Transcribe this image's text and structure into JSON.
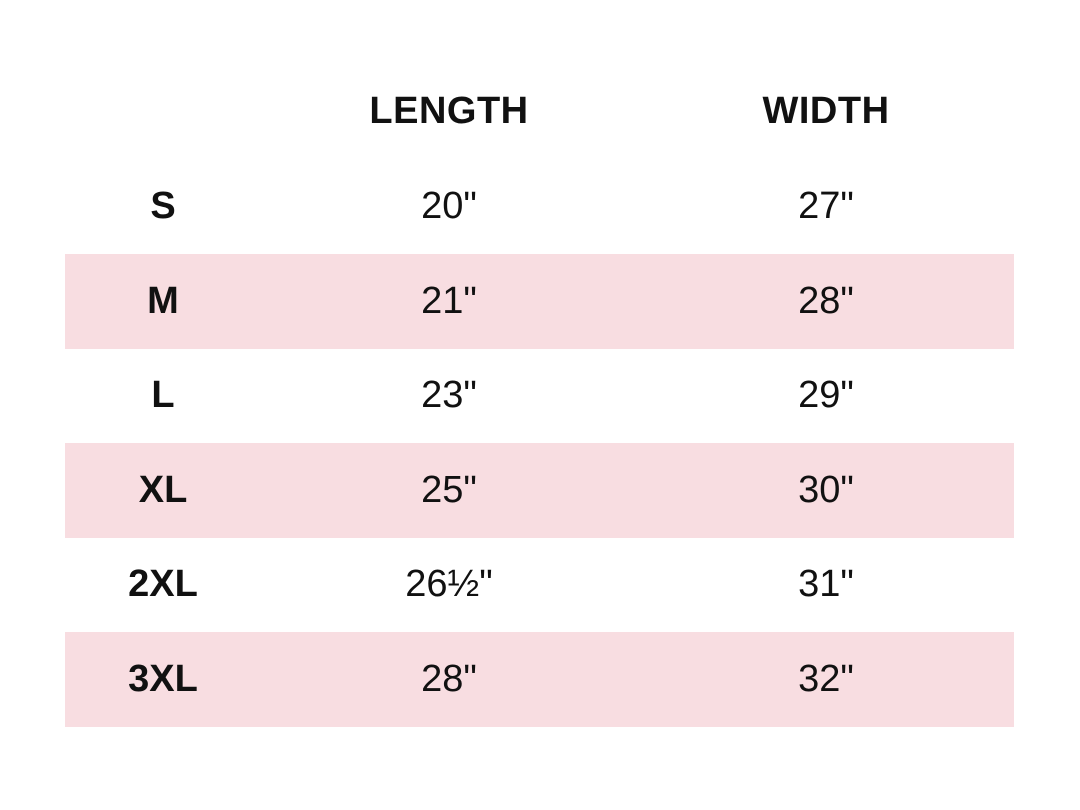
{
  "table": {
    "headers": [
      "LENGTH",
      "WIDTH"
    ],
    "rows": [
      [
        "S",
        "20\"",
        "27\""
      ],
      [
        "M",
        "21\"",
        "28\""
      ],
      [
        "L",
        "23\"",
        "29\""
      ],
      [
        "XL",
        "25\"",
        "30\""
      ],
      [
        "2XL",
        "26½\"",
        "31\""
      ],
      [
        "3XL",
        "28\"",
        "32\""
      ]
    ]
  }
}
